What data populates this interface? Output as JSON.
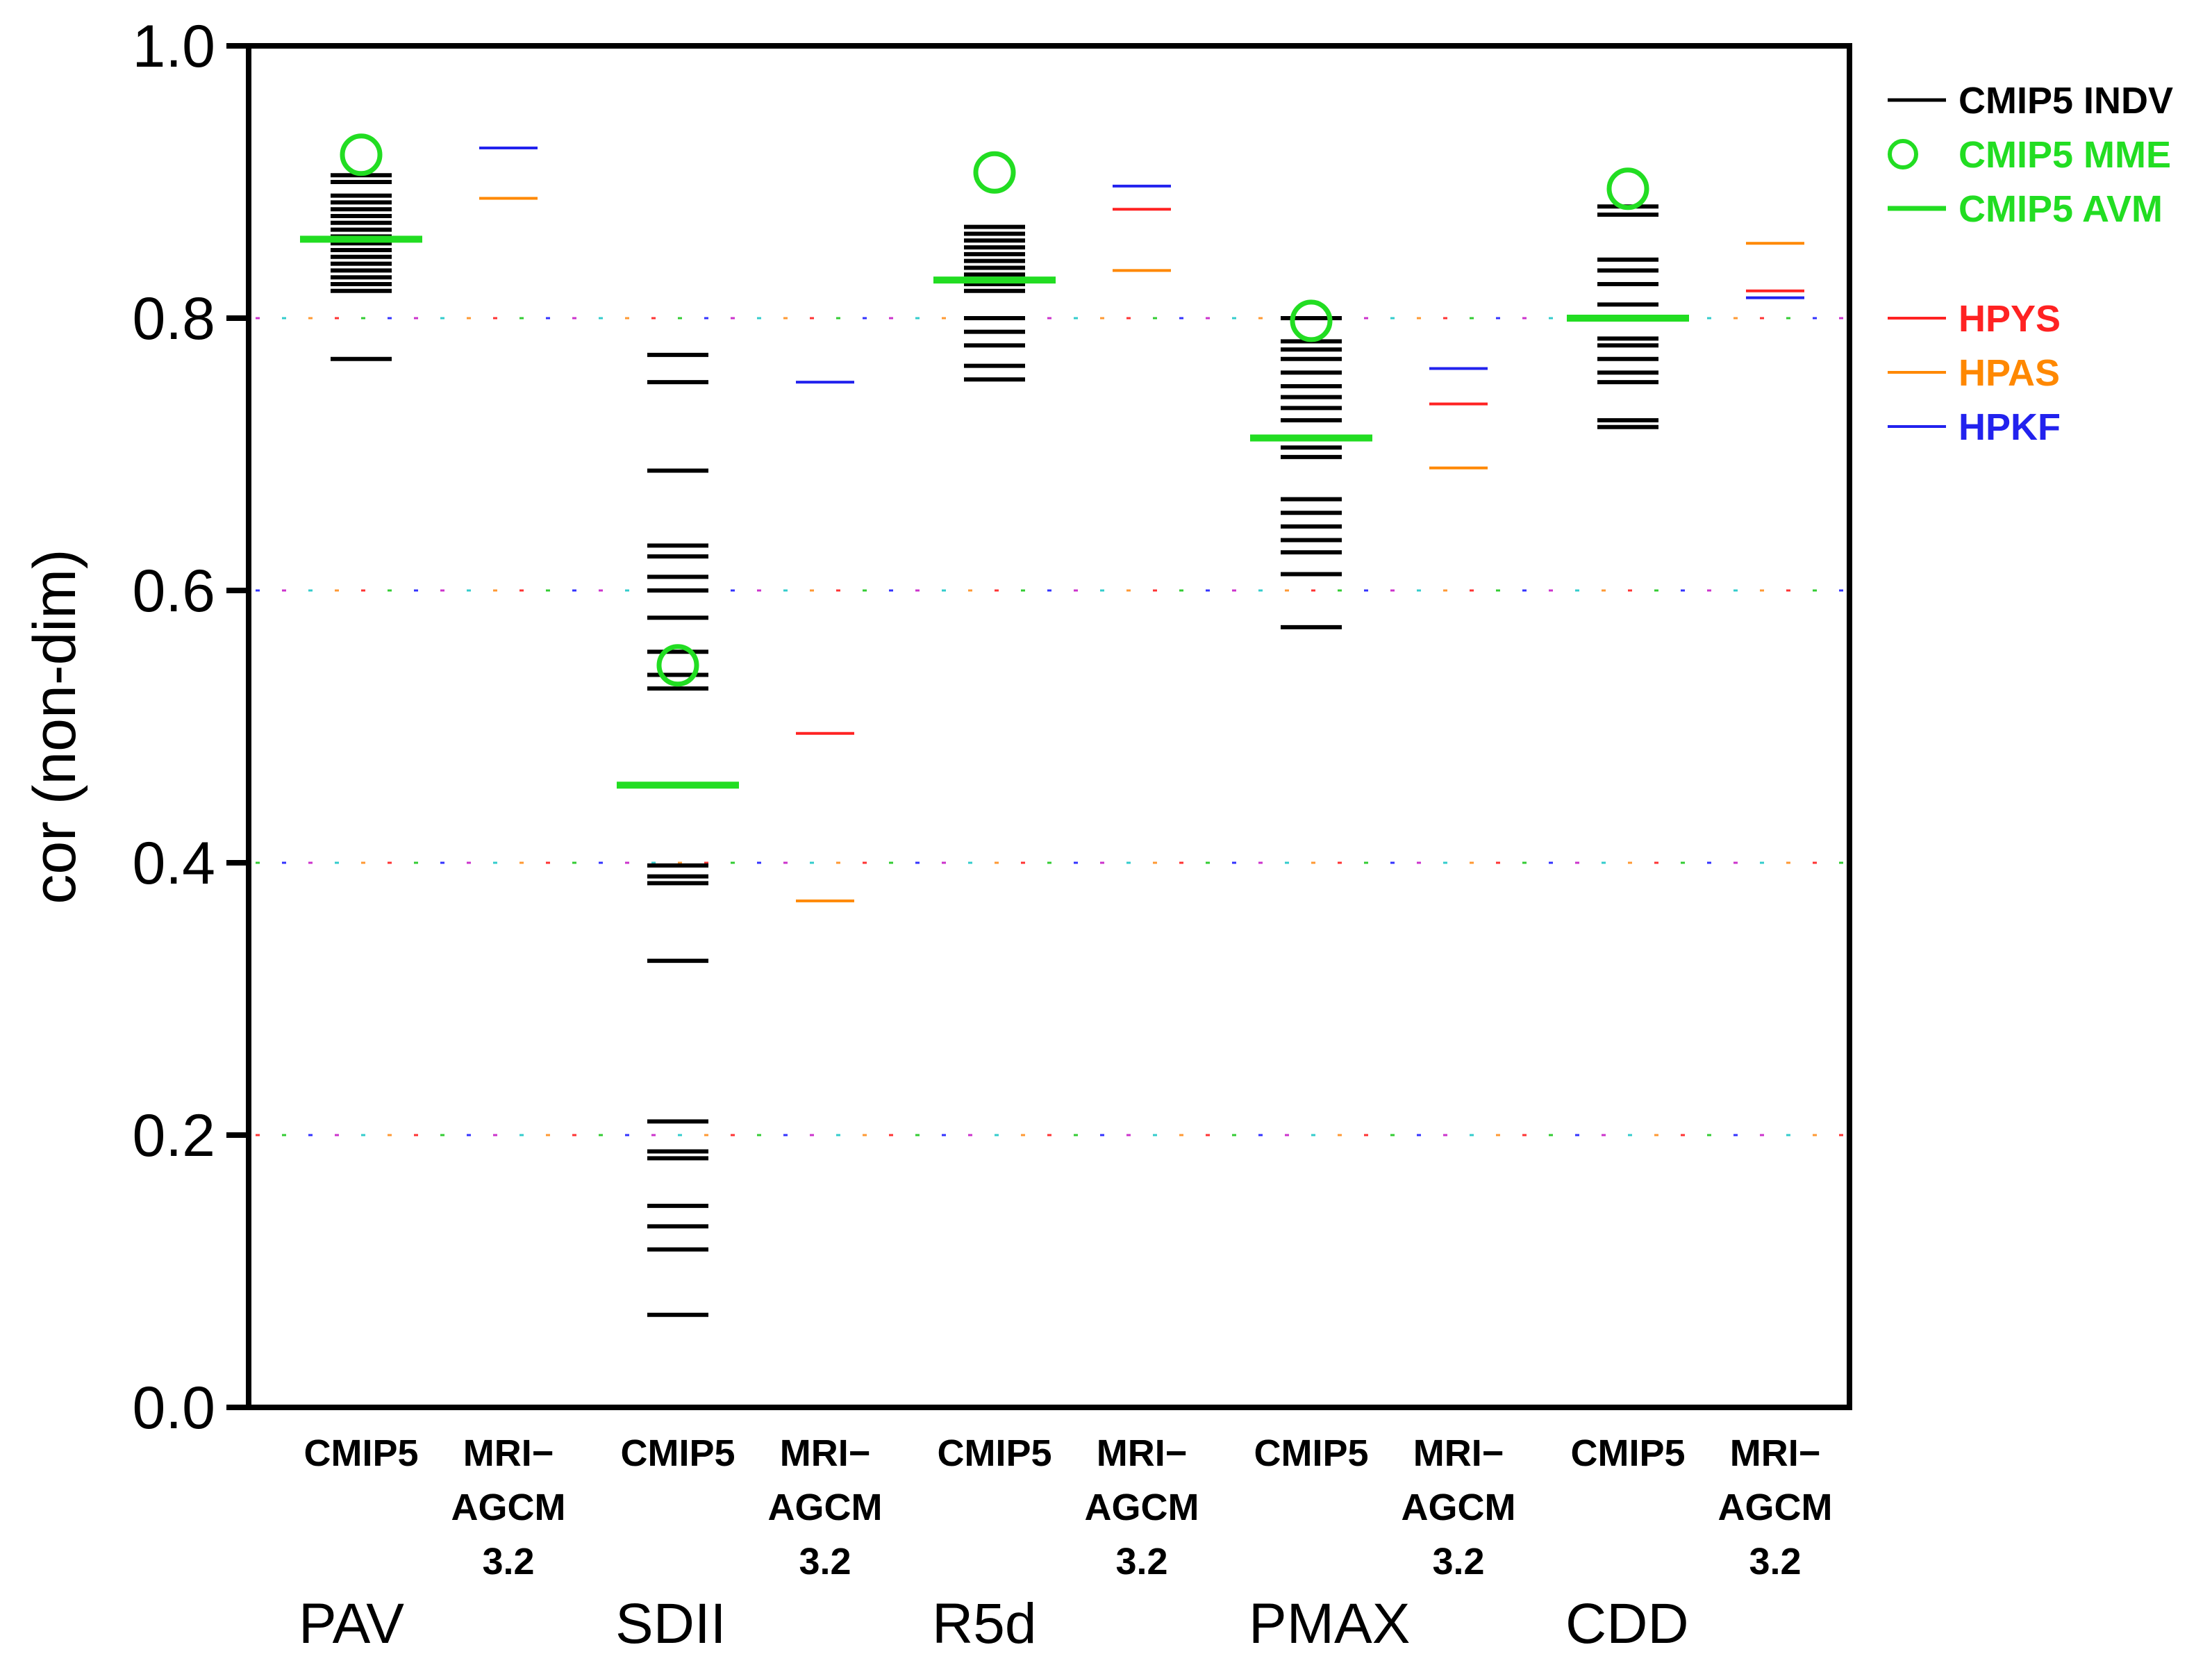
{
  "chart_data": {
    "type": "scatter",
    "ylabel": "cor (non-dim)",
    "ylim": [
      0.0,
      1.0
    ],
    "yticks": [
      "0.0",
      "0.2",
      "0.4",
      "0.6",
      "0.8",
      "1.0"
    ],
    "ytick_values": [
      0.0,
      0.2,
      0.4,
      0.6,
      0.8,
      1.0
    ],
    "gridlines": [
      0.2,
      0.4,
      0.6,
      0.8
    ],
    "sub_labels": {
      "cmip5": "CMIP5",
      "mri_line1": "MRI−",
      "mri_line2": "AGCM",
      "mri_line3": "3.2"
    },
    "groups": [
      {
        "name": "PAV",
        "cmip5_indv": [
          0.905,
          0.9,
          0.89,
          0.885,
          0.88,
          0.875,
          0.87,
          0.865,
          0.86,
          0.855,
          0.85,
          0.845,
          0.84,
          0.835,
          0.83,
          0.825,
          0.82,
          0.77
        ],
        "cmip5_mme": 0.92,
        "cmip5_avm": 0.858,
        "hpys": 0.925,
        "hpas": 0.888,
        "hpkf": 0.925
      },
      {
        "name": "SDII",
        "cmip5_indv": [
          0.773,
          0.753,
          0.688,
          0.633,
          0.625,
          0.61,
          0.6,
          0.58,
          0.555,
          0.538,
          0.528,
          0.398,
          0.39,
          0.385,
          0.328,
          0.21,
          0.188,
          0.183,
          0.148,
          0.133,
          0.116,
          0.068
        ],
        "cmip5_mme": 0.545,
        "cmip5_avm": 0.457,
        "hpys": 0.495,
        "hpas": 0.372,
        "hpkf": 0.753
      },
      {
        "name": "R5d",
        "cmip5_indv": [
          0.867,
          0.862,
          0.857,
          0.852,
          0.847,
          0.842,
          0.837,
          0.832,
          0.825,
          0.82,
          0.8,
          0.79,
          0.78,
          0.765,
          0.755
        ],
        "cmip5_mme": 0.907,
        "cmip5_avm": 0.828,
        "hpys": 0.88,
        "hpas": 0.835,
        "hpkf": 0.897
      },
      {
        "name": "PMAX",
        "cmip5_indv": [
          0.8,
          0.783,
          0.777,
          0.77,
          0.76,
          0.75,
          0.742,
          0.734,
          0.725,
          0.705,
          0.698,
          0.667,
          0.657,
          0.647,
          0.637,
          0.628,
          0.612,
          0.573
        ],
        "cmip5_mme": 0.798,
        "cmip5_avm": 0.712,
        "hpys": 0.737,
        "hpas": 0.69,
        "hpkf": 0.763
      },
      {
        "name": "CDD",
        "cmip5_indv": [
          0.882,
          0.876,
          0.843,
          0.835,
          0.825,
          0.81,
          0.8,
          0.785,
          0.78,
          0.77,
          0.76,
          0.753,
          0.725,
          0.72
        ],
        "cmip5_mme": 0.895,
        "cmip5_avm": 0.8,
        "hpys": 0.82,
        "hpas": 0.855,
        "hpkf": 0.815
      }
    ],
    "legend": [
      {
        "key": "indv",
        "label": "CMIP5  INDV",
        "color": "#000000",
        "marker": "line"
      },
      {
        "key": "mme",
        "label": "CMIP5  MME",
        "color": "#22dd22",
        "marker": "circle"
      },
      {
        "key": "avm",
        "label": "CMIP5  AVM",
        "color": "#22dd22",
        "marker": "line"
      },
      {
        "key": "hpys",
        "label": "HPYS",
        "color": "#ff2222",
        "marker": "line"
      },
      {
        "key": "hpas",
        "label": "HPAS",
        "color": "#ff8800",
        "marker": "line"
      },
      {
        "key": "hpkf",
        "label": "HPKF",
        "color": "#2222ee",
        "marker": "line"
      }
    ],
    "legend_position": "right"
  },
  "colors": {
    "indv": "#000000",
    "mme": "#22dd22",
    "avm": "#22dd22",
    "hpys": "#ff2222",
    "hpas": "#ff8800",
    "hpkf": "#2222ee"
  }
}
